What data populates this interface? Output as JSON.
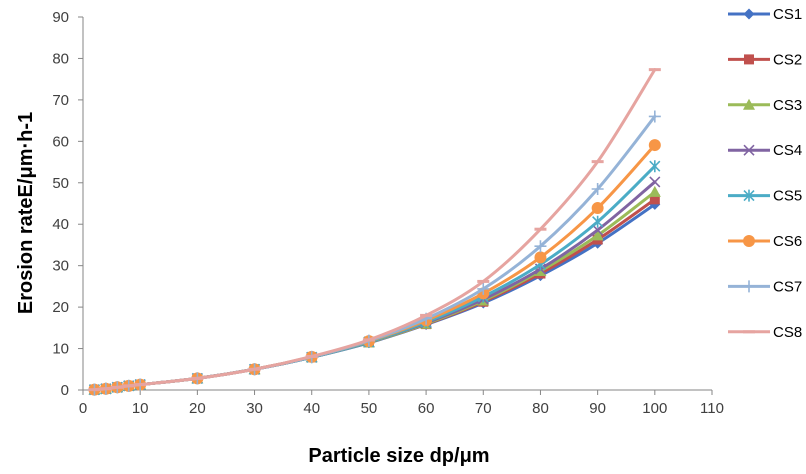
{
  "chart_data": {
    "type": "line",
    "title": "",
    "xlabel": "Particle size  dp/μm",
    "ylabel": "Erosion rateE/μm·h-1",
    "xlim": [
      0,
      110
    ],
    "ylim": [
      0,
      90
    ],
    "xticks": [
      0,
      10,
      20,
      30,
      40,
      50,
      60,
      70,
      80,
      90,
      100,
      110
    ],
    "yticks": [
      0,
      10,
      20,
      30,
      40,
      50,
      60,
      70,
      80,
      90
    ],
    "grid": false,
    "legend_position": "right",
    "x": [
      2,
      4,
      6,
      8,
      10,
      20,
      30,
      40,
      50,
      60,
      70,
      80,
      90,
      100
    ],
    "series": [
      {
        "name": "CS1",
        "color": "#4472c4",
        "marker": "diamond",
        "values": [
          0.08,
          0.3,
          0.65,
          1.0,
          1.3,
          2.8,
          5.0,
          7.9,
          11.4,
          15.8,
          21.0,
          27.6,
          35.4,
          44.8
        ]
      },
      {
        "name": "CS2",
        "color": "#c0504d",
        "marker": "square",
        "values": [
          0.08,
          0.3,
          0.65,
          1.0,
          1.3,
          2.8,
          5.0,
          7.9,
          11.5,
          15.9,
          21.3,
          28.1,
          36.3,
          46.0
        ]
      },
      {
        "name": "CS3",
        "color": "#9bbb59",
        "marker": "triangle",
        "values": [
          0.08,
          0.3,
          0.65,
          1.0,
          1.3,
          2.8,
          5.0,
          7.9,
          11.5,
          16.0,
          21.6,
          28.7,
          37.3,
          47.8
        ]
      },
      {
        "name": "CS4",
        "color": "#8064a2",
        "marker": "x",
        "values": [
          0.08,
          0.3,
          0.65,
          1.0,
          1.3,
          2.8,
          5.0,
          7.9,
          11.6,
          16.2,
          21.9,
          29.2,
          38.6,
          50.2
        ]
      },
      {
        "name": "CS5",
        "color": "#4bacc6",
        "marker": "star",
        "values": [
          0.08,
          0.3,
          0.65,
          1.0,
          1.3,
          2.8,
          5.0,
          7.9,
          11.6,
          16.4,
          22.5,
          30.3,
          40.6,
          54.0
        ]
      },
      {
        "name": "CS6",
        "color": "#f79646",
        "marker": "circle",
        "values": [
          0.08,
          0.3,
          0.65,
          1.0,
          1.3,
          2.8,
          5.0,
          8.0,
          11.8,
          16.8,
          23.3,
          32.0,
          43.9,
          59.1
        ]
      },
      {
        "name": "CS7",
        "color": "#95b3d7",
        "marker": "plus",
        "values": [
          0.08,
          0.3,
          0.65,
          1.0,
          1.3,
          2.8,
          5.0,
          8.0,
          11.9,
          17.2,
          24.4,
          34.7,
          48.5,
          66.0
        ]
      },
      {
        "name": "CS8",
        "color": "#e6a4a0",
        "marker": "dash",
        "values": [
          0.08,
          0.3,
          0.65,
          1.0,
          1.3,
          2.8,
          5.0,
          8.1,
          12.1,
          18.0,
          26.2,
          38.8,
          55.1,
          77.3
        ]
      }
    ]
  }
}
